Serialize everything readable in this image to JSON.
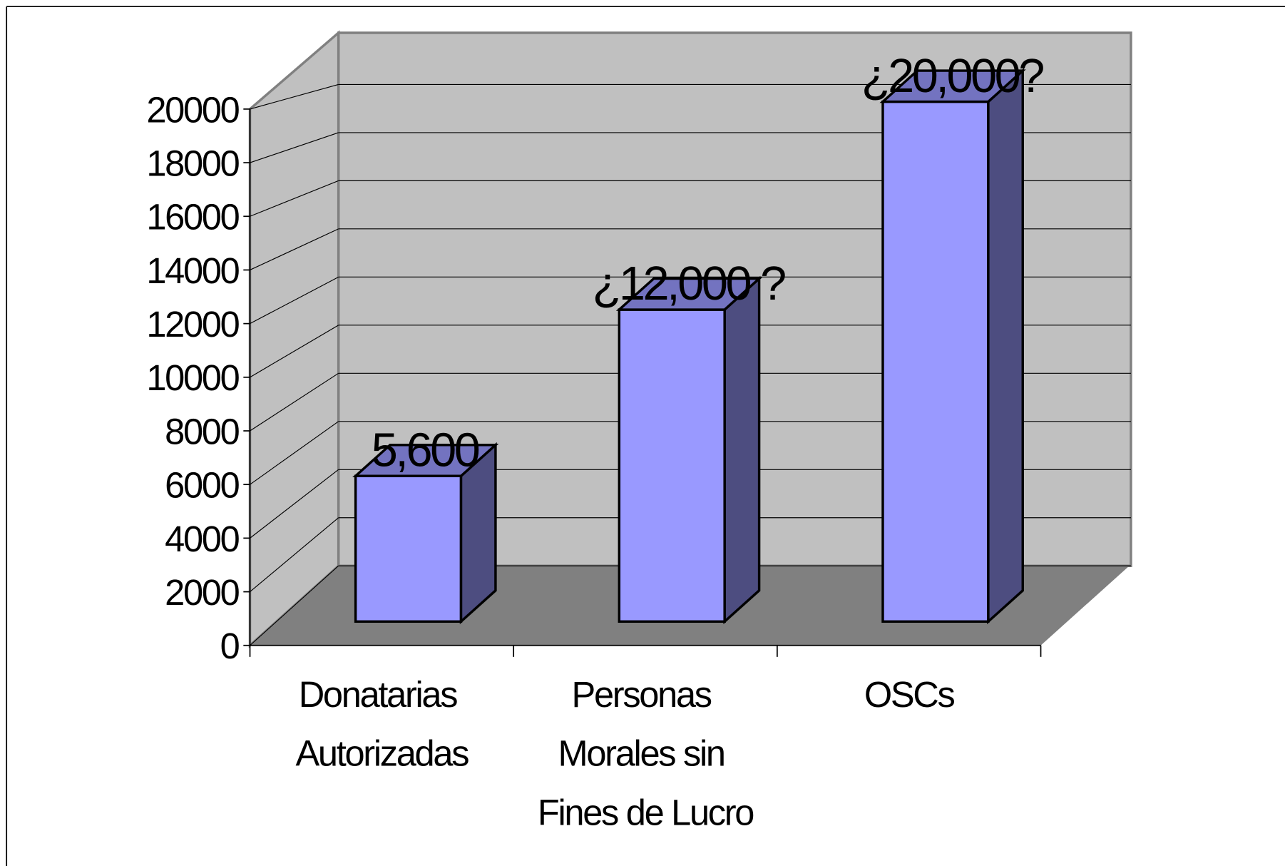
{
  "chart_data": {
    "type": "bar3d",
    "categories": [
      "Donatarias Autorizadas",
      "Personas Morales sin Fines de Lucro",
      "OSCs"
    ],
    "values": [
      5600,
      12000,
      20000
    ],
    "value_labels": [
      "5,600",
      "¿12,000 ?",
      "¿20,000?"
    ],
    "color": "#9999ff",
    "side_color": "#4d4d80",
    "top_color": "#7373c0",
    "wall_color": "#c0c0c0",
    "floor_color": "#808080",
    "ylim": [
      0,
      20000
    ],
    "yticks": [
      0,
      2000,
      4000,
      6000,
      8000,
      10000,
      12000,
      14000,
      16000,
      18000,
      20000
    ],
    "grid": true
  }
}
